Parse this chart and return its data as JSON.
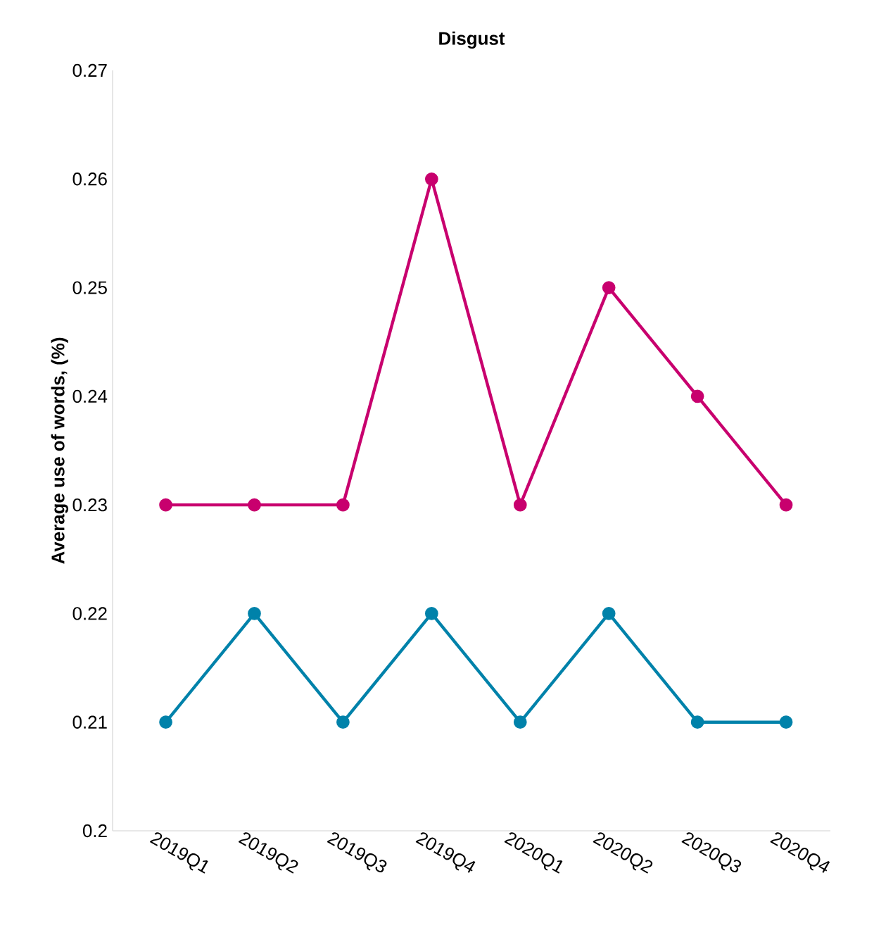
{
  "chart_data": {
    "type": "line",
    "title": "Disgust",
    "ylabel": "Average use of words, (%)",
    "categories": [
      "2019Q1",
      "2019Q2",
      "2019Q3",
      "2019Q4",
      "2020Q1",
      "2020Q2",
      "2020Q3",
      "2020Q4"
    ],
    "series": [
      {
        "color": "#c8006e",
        "values": [
          0.23,
          0.23,
          0.23,
          0.26,
          0.23,
          0.25,
          0.24,
          0.23
        ]
      },
      {
        "color": "#0082aa",
        "values": [
          0.21,
          0.22,
          0.21,
          0.22,
          0.21,
          0.22,
          0.21,
          0.21
        ]
      }
    ],
    "ylim": [
      0.2,
      0.27
    ],
    "yticks": [
      0.2,
      0.21,
      0.22,
      0.23,
      0.24,
      0.25,
      0.26,
      0.27
    ],
    "marker": "circle",
    "line_style": "solid"
  }
}
